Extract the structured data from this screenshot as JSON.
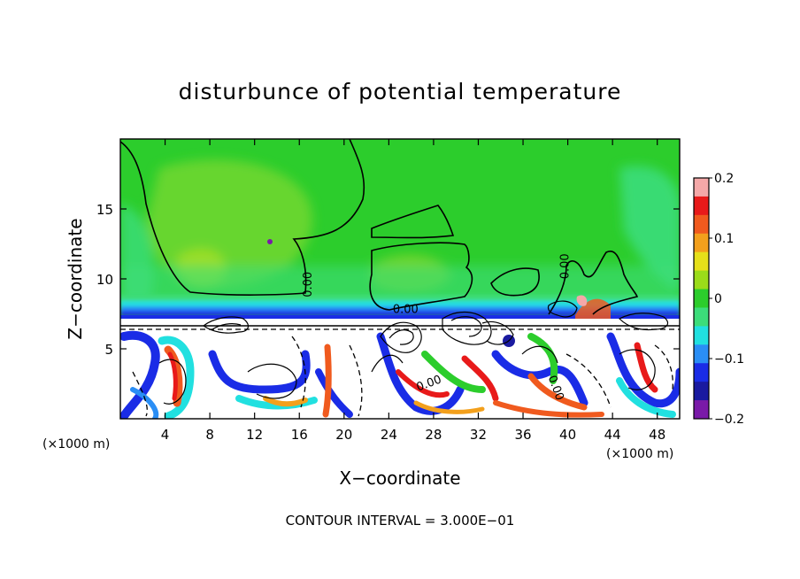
{
  "chart_data": {
    "type": "heatmap",
    "title": "disturbunce of potential temperature",
    "xlabel": "X−coordinate",
    "ylabel": "Z−coordinate",
    "x_unit_left": "(×1000 m)",
    "x_unit_right": "(×1000 m)",
    "footer": "CONTOUR INTERVAL = 3.000E−01",
    "xlim": [
      0,
      50
    ],
    "ylim": [
      0,
      20
    ],
    "x_ticks": [
      4,
      8,
      12,
      16,
      20,
      24,
      28,
      32,
      36,
      40,
      44,
      48
    ],
    "y_ticks": [
      5,
      10,
      15
    ],
    "colorbar": {
      "range": [
        -0.2,
        0.2
      ],
      "tick_values": [
        0.2,
        0.1,
        0,
        -0.1,
        -0.2
      ],
      "tick_labels": [
        "0.2",
        "0.1",
        "0",
        "−0.1",
        "−0.2"
      ],
      "colors": [
        "#f4a8a8",
        "#e81a1a",
        "#f05a1e",
        "#f3a01c",
        "#e6e01a",
        "#9bdc1a",
        "#2ccd2c",
        "#3cdd7a",
        "#21e0e0",
        "#2a8ef5",
        "#1a2ce6",
        "#1a1aa0",
        "#7a1aa8"
      ]
    },
    "contour_labels": [
      {
        "text": "0.00",
        "x": 16.8,
        "z": 9.6,
        "rotate": -90
      },
      {
        "text": "0.00",
        "x": 25.5,
        "z": 7.8,
        "rotate": 0
      },
      {
        "text": "0.00",
        "x": 39.8,
        "z": 10.9,
        "rotate": -90
      },
      {
        "text": "0.00",
        "x": 27.6,
        "z": 2.5,
        "rotate": -20
      },
      {
        "text": "0.00",
        "x": 38.9,
        "z": 2.2,
        "rotate": 70
      }
    ],
    "grid": false
  }
}
